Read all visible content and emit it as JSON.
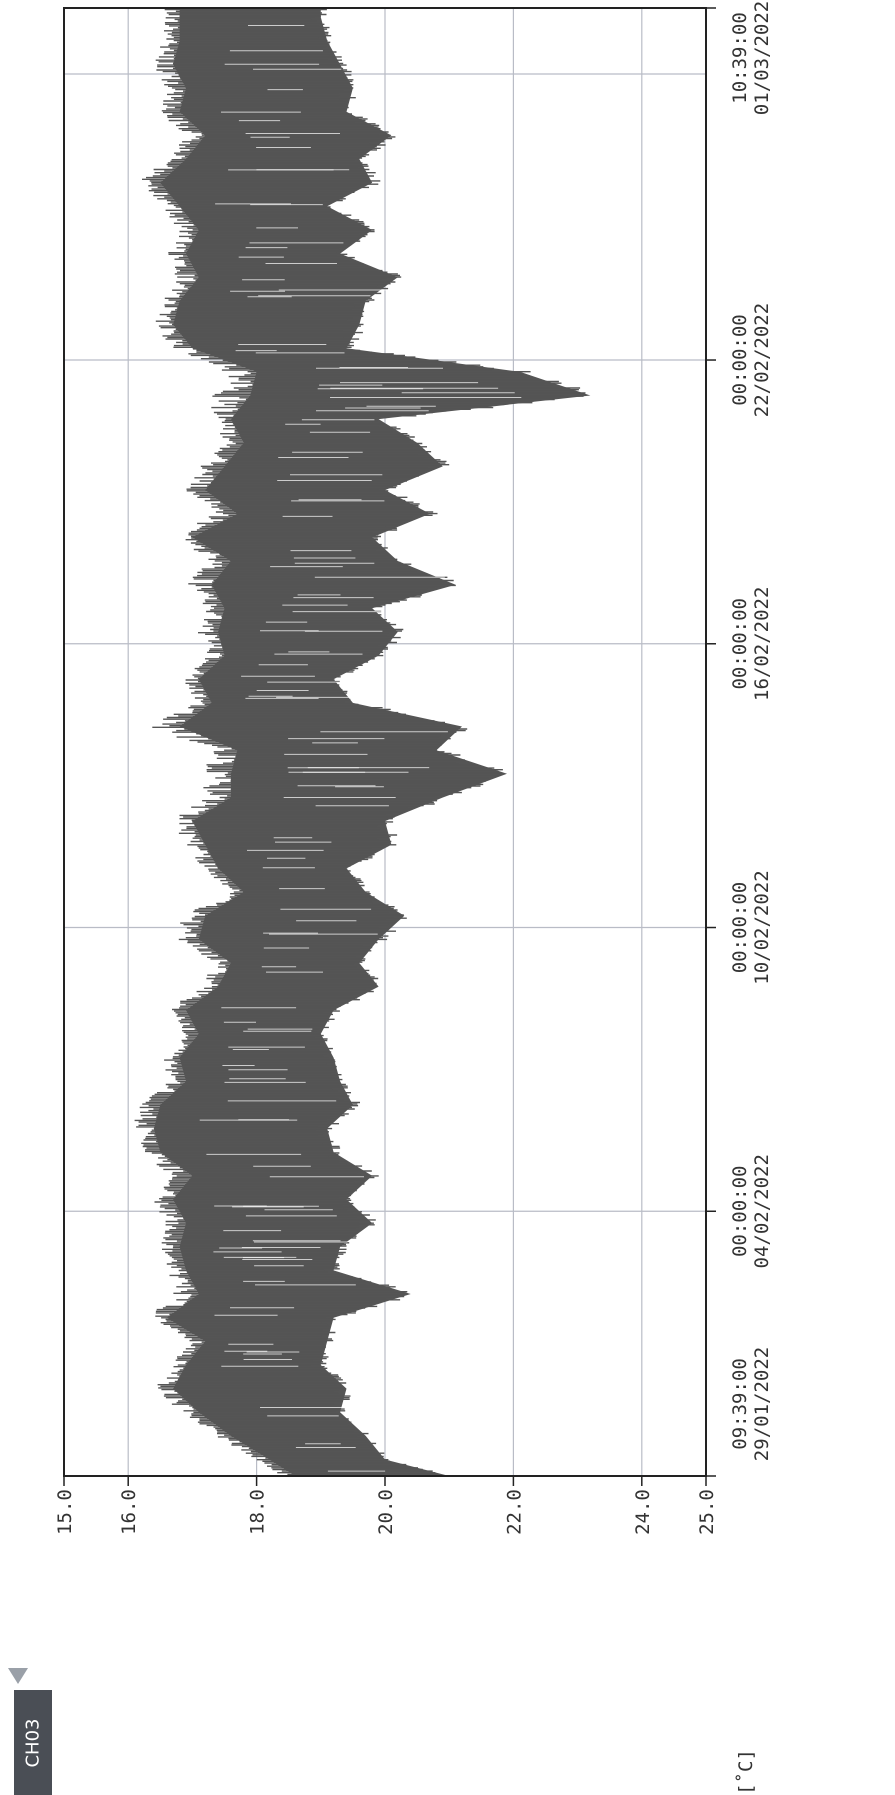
{
  "channel_label": "CH03",
  "unit_label": "[˚C]",
  "chart_data": {
    "type": "area",
    "title": "",
    "xlabel": "",
    "ylabel": "[˚C]",
    "ylim": [
      15.0,
      25.0
    ],
    "y_ticks": [
      "15.0",
      "16.0",
      "18.0",
      "20.0",
      "22.0",
      "24.0",
      "25.0"
    ],
    "x_range": [
      "2022-01-29T09:39:00",
      "2022-03-01T10:39:00"
    ],
    "x_ticks": [
      {
        "time": "09:39:00",
        "date": "29/01/2022"
      },
      {
        "time": "00:00:00",
        "date": "04/02/2022"
      },
      {
        "time": "00:00:00",
        "date": "10/02/2022"
      },
      {
        "time": "00:00:00",
        "date": "16/02/2022"
      },
      {
        "time": "00:00:00",
        "date": "22/02/2022"
      },
      {
        "time": "10:39:00",
        "date": "01/03/2022"
      }
    ],
    "grid": true,
    "series": [
      {
        "color": "#555555",
        "x": [
          "2022-01-29T09:39",
          "2022-01-29T18:00",
          "2022-01-30T06:00",
          "2022-01-30T18:00",
          "2022-01-31T06:00",
          "2022-01-31T18:00",
          "2022-02-01T06:00",
          "2022-02-01T18:00",
          "2022-02-02T06:00",
          "2022-02-02T18:00",
          "2022-02-03T06:00",
          "2022-02-03T18:00",
          "2022-02-04T06:00",
          "2022-02-04T18:00",
          "2022-02-05T06:00",
          "2022-02-05T18:00",
          "2022-02-06T06:00",
          "2022-02-06T18:00",
          "2022-02-07T06:00",
          "2022-02-07T18:00",
          "2022-02-08T06:00",
          "2022-02-08T18:00",
          "2022-02-09T06:00",
          "2022-02-09T18:00",
          "2022-02-10T06:00",
          "2022-02-10T18:00",
          "2022-02-11T06:00",
          "2022-02-11T18:00",
          "2022-02-12T06:00",
          "2022-02-12T18:00",
          "2022-02-13T06:00",
          "2022-02-13T18:00",
          "2022-02-14T06:00",
          "2022-02-14T18:00",
          "2022-02-15T06:00",
          "2022-02-15T18:00",
          "2022-02-16T06:00",
          "2022-02-16T18:00",
          "2022-02-17T06:00",
          "2022-02-17T18:00",
          "2022-02-18T06:00",
          "2022-02-18T18:00",
          "2022-02-19T06:00",
          "2022-02-19T18:00",
          "2022-02-20T06:00",
          "2022-02-20T18:00",
          "2022-02-21T06:00",
          "2022-02-21T18:00",
          "2022-02-22T06:00",
          "2022-02-22T18:00",
          "2022-02-23T06:00",
          "2022-02-23T18:00",
          "2022-02-24T06:00",
          "2022-02-24T18:00",
          "2022-02-25T06:00",
          "2022-02-25T18:00",
          "2022-02-26T06:00",
          "2022-02-26T18:00",
          "2022-02-27T06:00",
          "2022-02-27T18:00",
          "2022-02-28T06:00",
          "2022-02-28T18:00",
          "2022-03-01T06:00",
          "2022-03-01T10:39"
        ],
        "max": [
          21.0,
          20.0,
          19.7,
          19.3,
          19.4,
          19.0,
          19.1,
          19.2,
          20.4,
          19.2,
          19.3,
          19.8,
          19.4,
          19.8,
          19.2,
          19.1,
          19.5,
          19.3,
          19.2,
          19.0,
          19.2,
          19.9,
          19.6,
          19.9,
          20.3,
          19.7,
          19.4,
          20.1,
          20.0,
          20.9,
          21.9,
          20.8,
          21.2,
          19.5,
          19.2,
          19.9,
          20.2,
          19.8,
          21.1,
          20.2,
          19.8,
          20.7,
          20.0,
          20.9,
          20.5,
          19.9,
          23.2,
          22.1,
          19.4,
          19.6,
          19.7,
          20.2,
          19.3,
          19.8,
          19.1,
          19.8,
          19.6,
          20.1,
          19.4,
          19.5,
          19.3,
          19.1,
          19.0,
          19.0
        ],
        "min": [
          18.6,
          18.2,
          17.6,
          17.1,
          16.7,
          16.9,
          17.2,
          16.6,
          17.1,
          16.9,
          16.8,
          16.9,
          16.7,
          17.0,
          16.5,
          16.4,
          16.5,
          16.9,
          16.8,
          17.1,
          16.9,
          17.4,
          17.6,
          17.1,
          17.2,
          17.8,
          17.4,
          17.2,
          17.0,
          17.6,
          17.6,
          17.7,
          16.8,
          17.3,
          17.1,
          17.5,
          17.4,
          17.5,
          17.3,
          17.6,
          17.0,
          17.7,
          17.2,
          17.5,
          17.8,
          17.6,
          17.9,
          18.0,
          17.0,
          16.7,
          16.8,
          17.1,
          16.9,
          17.1,
          16.8,
          16.5,
          16.9,
          17.2,
          16.8,
          16.9,
          16.7,
          16.8,
          16.8,
          16.8
        ]
      }
    ]
  }
}
